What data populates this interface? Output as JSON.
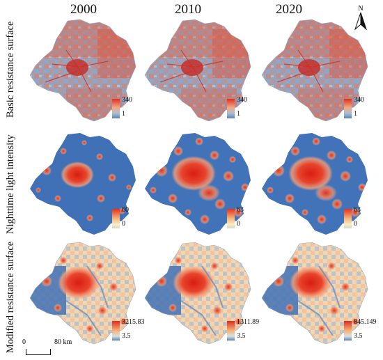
{
  "years": [
    "2000",
    "2010",
    "2020"
  ],
  "rows": [
    {
      "label": "Basic resistance surface",
      "legend": [
        {
          "max": "340",
          "min": "1"
        },
        {
          "max": "340",
          "min": "1"
        },
        {
          "max": "340",
          "min": "1"
        }
      ]
    },
    {
      "label": "Nighttime light intensity",
      "legend": [
        {
          "max": "60",
          "min": "0"
        },
        {
          "max": "63",
          "min": "0"
        },
        {
          "max": "63",
          "min": "0"
        }
      ]
    },
    {
      "label": "Modified resistance surface",
      "legend": [
        {
          "max": "3215.83",
          "min": "3.5"
        },
        {
          "max": "1311.89",
          "min": "3.5"
        },
        {
          "max": "845.149",
          "min": "3.5"
        }
      ]
    }
  ],
  "north_arrow": "N",
  "scale_bar": {
    "start": "0",
    "end": "80 km"
  },
  "colors": {
    "basic_high": "#e03020",
    "basic_low": "#6b8fc0",
    "light_background": "#4272b7",
    "light_high": "#e82d1c",
    "modified_high": "#e22a1a",
    "modified_low": "#5a82b8"
  }
}
